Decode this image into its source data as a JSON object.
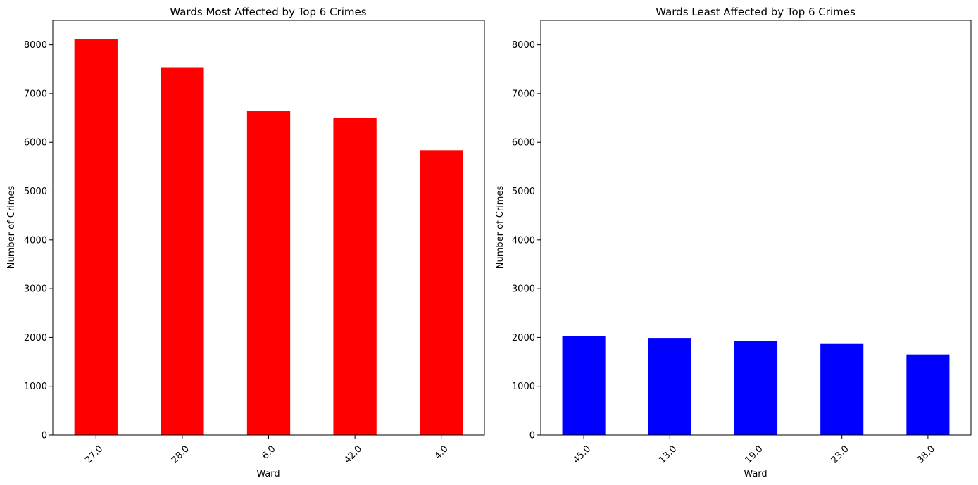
{
  "chart_data": [
    {
      "type": "bar",
      "title": "Wards Most Affected by Top 6 Crimes",
      "xlabel": "Ward",
      "ylabel": "Number of Crimes",
      "categories": [
        "27.0",
        "28.0",
        "6.0",
        "42.0",
        "4.0"
      ],
      "values": [
        8120,
        7540,
        6640,
        6500,
        5840
      ],
      "color": "#ff0000",
      "ylim": [
        0,
        8500
      ],
      "yticks": [
        0,
        1000,
        2000,
        3000,
        4000,
        5000,
        6000,
        7000,
        8000
      ],
      "grid": false,
      "xtick_rotation": 45
    },
    {
      "type": "bar",
      "title": "Wards Least Affected by Top 6 Crimes",
      "xlabel": "Ward",
      "ylabel": "Number of Crimes",
      "categories": [
        "45.0",
        "13.0",
        "19.0",
        "23.0",
        "38.0"
      ],
      "values": [
        2030,
        1990,
        1930,
        1880,
        1650
      ],
      "color": "#0000ff",
      "ylim": [
        0,
        8500
      ],
      "yticks": [
        0,
        1000,
        2000,
        3000,
        4000,
        5000,
        6000,
        7000,
        8000
      ],
      "grid": false,
      "xtick_rotation": 45
    }
  ]
}
